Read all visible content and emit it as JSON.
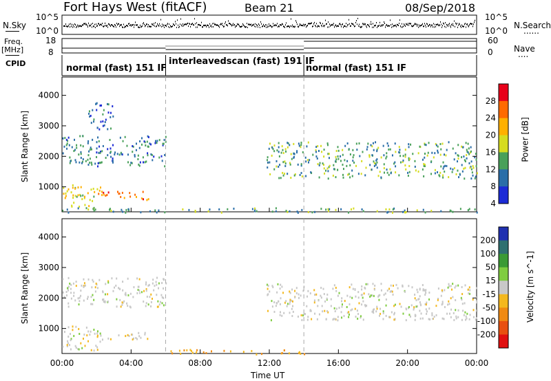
{
  "header": {
    "radar": "Fort Hays West (fitACF)",
    "beam": "Beam 21",
    "date": "08/Sep/2018"
  },
  "side_labels": {
    "nsky": "N.Sky",
    "freq_top": "Freq.",
    "freq_unit": "[MHz]",
    "cpid": "CPID",
    "nsearch": "N.Search",
    "nave": "Nave",
    "dotted": "......",
    "dotted_short": "...."
  },
  "noise_panel": {
    "ticks_left": [
      "10^5",
      "10^0"
    ],
    "ticks_right": [
      "10^5",
      "10^0"
    ]
  },
  "freq_panel": {
    "ticks_left": [
      "18",
      "8"
    ],
    "ticks_right": [
      "60",
      "0"
    ]
  },
  "cpid_panel": {
    "segments": [
      {
        "label": "normal (fast) 151 IF",
        "start_h": 0,
        "end_h": 6
      },
      {
        "label": "interleavedscan (fast) 191 IF",
        "start_h": 6,
        "end_h": 14
      },
      {
        "label": "normal (fast) 151 IF",
        "start_h": 14,
        "end_h": 24
      }
    ]
  },
  "power_colorbar": {
    "label": "Power [dB]",
    "ticks": [
      "28",
      "24",
      "20",
      "16",
      "12",
      "8",
      "4"
    ],
    "colors": [
      "#e8001a",
      "#ff6a00",
      "#ffb000",
      "#d6dc20",
      "#49a05a",
      "#2a6ea8",
      "#1c2bd6"
    ]
  },
  "velocity_colorbar": {
    "label": "Velocity [m s^-1]",
    "ticks": [
      "200",
      "100",
      "50",
      "15",
      "-15",
      "-50",
      "-100",
      "-200"
    ],
    "colors": [
      "#2030b0",
      "#2f7070",
      "#3b9a35",
      "#7fcc40",
      "#c8c8c8",
      "#f4b81e",
      "#f08a12",
      "#e85010",
      "#e01010"
    ]
  },
  "time_axis": {
    "label": "Time UT",
    "ticks": [
      "00:00",
      "04:00",
      "08:00",
      "12:00",
      "16:00",
      "20:00",
      "00:00"
    ]
  },
  "chart_data": [
    {
      "type": "heatmap",
      "panel": "power",
      "xlabel": "Time UT",
      "ylabel": "Slant Range [km]",
      "xlim": [
        0,
        24
      ],
      "ylim": [
        180,
        4600
      ],
      "yticks": [
        1000,
        2000,
        3000,
        4000
      ],
      "colorbar": "Power [dB]",
      "scatter_regions": [
        {
          "t0": 0.0,
          "t1": 6.0,
          "r0": 1700,
          "r1": 2700,
          "value_db": 12
        },
        {
          "t0": 1.5,
          "t1": 3.0,
          "r0": 2900,
          "r1": 3800,
          "value_db": 10
        },
        {
          "t0": 0.0,
          "t1": 2.2,
          "r0": 300,
          "r1": 1100,
          "value_db": 20
        },
        {
          "t0": 2.0,
          "t1": 5.0,
          "r0": 600,
          "r1": 900,
          "value_db": 27
        },
        {
          "t0": 0.0,
          "t1": 24.0,
          "r0": 180,
          "r1": 330,
          "value_db": 14
        },
        {
          "t0": 11.8,
          "t1": 24.0,
          "r0": 1300,
          "r1": 2500,
          "value_db": 14
        }
      ],
      "markers_h": [
        6,
        14
      ]
    },
    {
      "type": "heatmap",
      "panel": "velocity",
      "xlabel": "Time UT",
      "ylabel": "Slant Range [km]",
      "xlim": [
        0,
        24
      ],
      "ylim": [
        180,
        4600
      ],
      "yticks": [
        1000,
        2000,
        3000,
        4000
      ],
      "colorbar": "Velocity [m s^-1]",
      "scatter_regions": [
        {
          "t0": 0.0,
          "t1": 6.0,
          "r0": 1700,
          "r1": 2700,
          "value_ms": 0
        },
        {
          "t0": 0.0,
          "t1": 2.2,
          "r0": 300,
          "r1": 1100,
          "value_ms": 0
        },
        {
          "t0": 2.0,
          "t1": 5.0,
          "r0": 600,
          "r1": 900,
          "value_ms": -10
        },
        {
          "t0": 6.0,
          "t1": 14.0,
          "r0": 180,
          "r1": 330,
          "value_ms": -40
        },
        {
          "t0": 11.8,
          "t1": 24.0,
          "r0": 1300,
          "r1": 2500,
          "value_ms": 0
        }
      ],
      "markers_h": [
        6,
        14
      ]
    }
  ]
}
